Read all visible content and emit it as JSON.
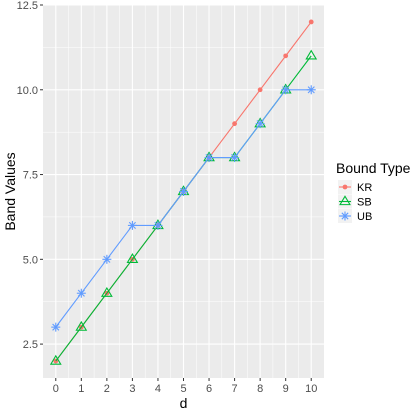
{
  "chart_data": {
    "type": "line",
    "xlabel": "d",
    "ylabel": "Band Values",
    "x": [
      0,
      1,
      2,
      3,
      4,
      5,
      6,
      7,
      8,
      9,
      10
    ],
    "x_ticks": [
      "0",
      "1",
      "2",
      "3",
      "4",
      "5",
      "6",
      "7",
      "8",
      "9",
      "10"
    ],
    "y_ticks": [
      "2.5",
      "5.0",
      "7.5",
      "10.0",
      "12.5"
    ],
    "y_tick_values": [
      2.5,
      5.0,
      7.5,
      10.0,
      12.5
    ],
    "xlim": [
      -0.5,
      10.5
    ],
    "ylim": [
      1.5,
      12.5
    ],
    "grid": true,
    "legend": {
      "title": "Bound Type",
      "placement": "right"
    },
    "series": [
      {
        "name": "KR",
        "color": "#F8766D",
        "marker": "dot",
        "values": [
          2,
          3,
          4,
          5,
          6,
          7,
          8,
          9,
          10,
          11,
          12
        ]
      },
      {
        "name": "SB",
        "color": "#00BA38",
        "marker": "triangle",
        "values": [
          2,
          3,
          4,
          5,
          6,
          7,
          8,
          8,
          9,
          10,
          11
        ]
      },
      {
        "name": "UB",
        "color": "#619CFF",
        "marker": "asterisk",
        "values": [
          3,
          4,
          5,
          6,
          6,
          7,
          8,
          8,
          9,
          10,
          10
        ]
      }
    ]
  }
}
